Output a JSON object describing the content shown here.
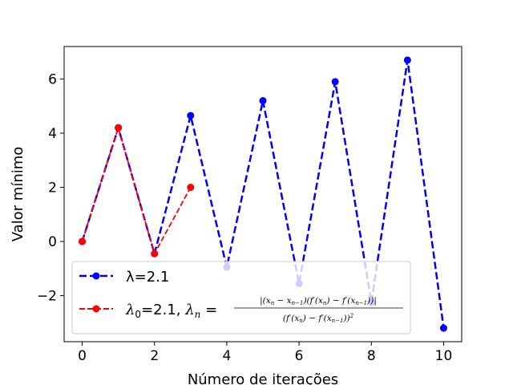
{
  "chart_data": {
    "type": "line",
    "title": "",
    "xlabel": "Número de iterações",
    "ylabel": "Valor mínimo",
    "xlim": [
      -0.5,
      10.5
    ],
    "ylim": [
      -3.7,
      7.2
    ],
    "xticks": [
      0,
      2,
      4,
      6,
      8,
      10
    ],
    "yticks": [
      -2,
      0,
      2,
      4,
      6
    ],
    "ytick_labels": [
      "−2",
      "0",
      "2",
      "4",
      "6"
    ],
    "grid": false,
    "legend_position": "lower-left",
    "series": [
      {
        "name": "λ=2.1",
        "color": "#0000ff",
        "style": "dashed",
        "marker": "circle",
        "x": [
          0,
          1,
          2,
          3,
          4,
          5,
          6,
          7,
          8,
          9,
          10
        ],
        "y": [
          0.0,
          4.2,
          -0.45,
          4.65,
          -0.95,
          5.2,
          -1.55,
          5.9,
          -2.25,
          6.7,
          -3.2
        ]
      },
      {
        "name": "λ0=2.1, λn = |(xn − xn−1)(f′(xn) − f′(xn−1))| / (f′(xn) − f′(xn−1))^2",
        "color": "#ff0000",
        "style": "dashed",
        "marker": "circle",
        "x": [
          0,
          1,
          2,
          3
        ],
        "y": [
          0.0,
          4.2,
          -0.45,
          2.0
        ]
      }
    ]
  }
}
